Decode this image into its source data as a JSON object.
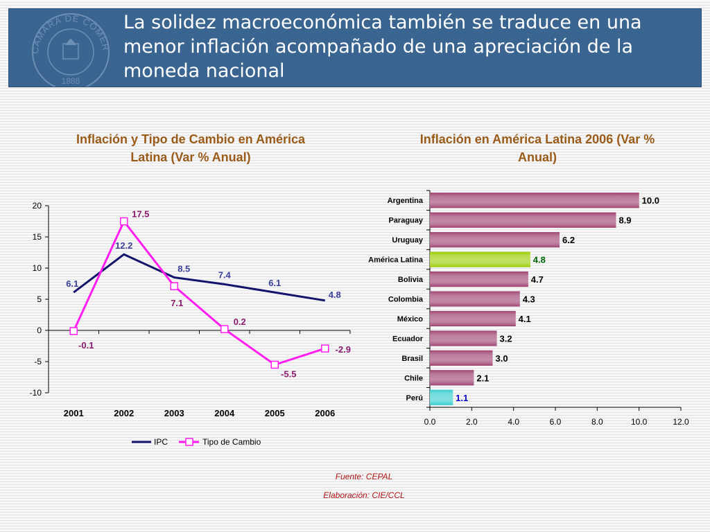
{
  "header": {
    "title": "La solidez macroeconómica también se traduce en una menor inflación acompañado de una apreciación de la moneda nacional",
    "seal_text": "CAMARA DE COMERCIO DE LIMA",
    "seal_year": "1888",
    "bg_color": "#3a6590"
  },
  "chart_data": [
    {
      "type": "line",
      "title": "Inflación y Tipo de Cambio en América Latina (Var % Anual)",
      "x": [
        "2001",
        "2002",
        "2003",
        "2004",
        "2005",
        "2006"
      ],
      "ylim": [
        -10,
        20
      ],
      "yticks": [
        "20",
        "15",
        "10",
        "5",
        "0",
        "-5",
        "-10"
      ],
      "grid": false,
      "legend_position": "bottom",
      "series": [
        {
          "name": "IPC",
          "values": [
            6.1,
            12.2,
            8.5,
            7.4,
            6.1,
            4.8
          ],
          "labels": [
            "6.1",
            "12.2",
            "8.5",
            "7.4",
            "6.1",
            "4.8"
          ],
          "color": "#12136b",
          "label_color": "#3a3f9a",
          "marker": "none"
        },
        {
          "name": "Tipo de Cambio",
          "values": [
            -0.1,
            17.5,
            7.1,
            0.2,
            -5.5,
            -2.9
          ],
          "labels": [
            "-0.1",
            "17.5",
            "7.1",
            "0.2",
            "-5.5",
            "-2.9"
          ],
          "color": "#ff1df0",
          "label_color": "#8a1a6e",
          "marker": "square"
        }
      ]
    },
    {
      "type": "bar",
      "orientation": "horizontal",
      "title": "Inflación en América Latina 2006 (Var % Anual)",
      "categories": [
        "Argentina",
        "Paraguay",
        "Uruguay",
        "América Latina",
        "Bolivia",
        "Colombia",
        "México",
        "Ecuador",
        "Brasil",
        "Chile",
        "Perú"
      ],
      "values": [
        10.0,
        8.9,
        6.2,
        4.8,
        4.7,
        4.3,
        4.1,
        3.2,
        3.0,
        2.1,
        1.1
      ],
      "labels": [
        "10.0",
        "8.9",
        "6.2",
        "4.8",
        "4.7",
        "4.3",
        "4.1",
        "3.2",
        "3.0",
        "2.1",
        "1.1"
      ],
      "xlim": [
        0,
        12
      ],
      "xticks": [
        "0.0",
        "2.0",
        "4.0",
        "6.0",
        "8.0",
        "10.0",
        "12.0"
      ],
      "grid": false,
      "colors": {
        "default": "#9c3f6e",
        "América Latina": "#99cc00",
        "Perú": "#33cccc"
      },
      "label_colors": {
        "default": "#000000",
        "América Latina": "#006600",
        "Perú": "#0000cc"
      }
    }
  ],
  "footer": {
    "source": "Fuente: CEPAL",
    "elaboration": "Elaboración: CIE/CCL"
  }
}
